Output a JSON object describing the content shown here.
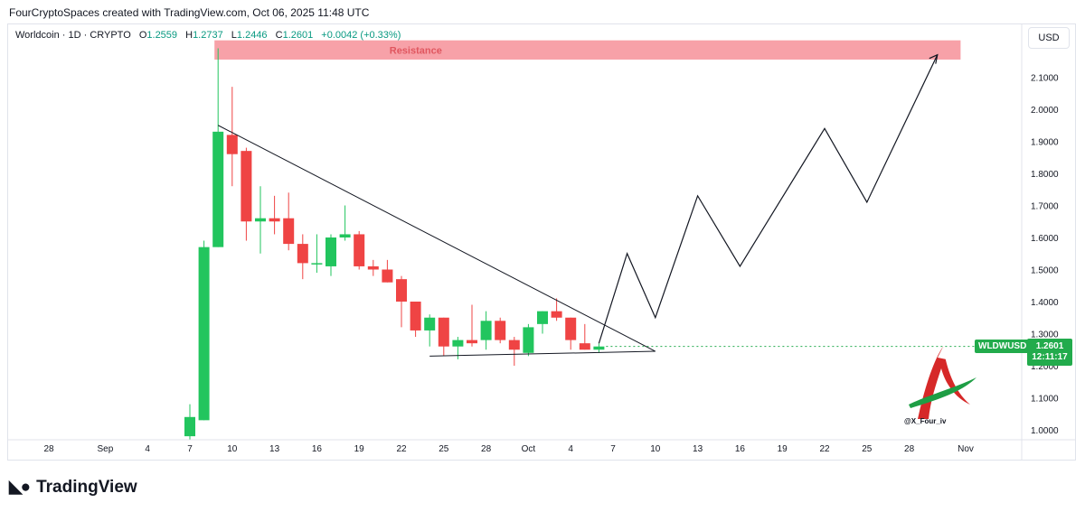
{
  "header": {
    "attribution": "FourCryptoSpaces created with TradingView.com, Oct 06, 2025 11:48 UTC"
  },
  "legend": {
    "symbol": "Worldcoin · 1D · CRYPTO",
    "open_label": "O",
    "open": "1.2559",
    "high_label": "H",
    "high": "1.2737",
    "low_label": "L",
    "low": "1.2446",
    "close_label": "C",
    "close": "1.2601",
    "change": "+0.0042 (+0.33%)"
  },
  "currency_button": "USD",
  "price_tag": {
    "symbol": "WLDWUSD",
    "price": "1.2601",
    "countdown": "12:11:17"
  },
  "watermark_handle": "@X_Four_iv",
  "footer": {
    "brand": "TradingView"
  },
  "colors": {
    "up": "#22c55e",
    "down": "#ef4444",
    "resistance": "#f7a1a8",
    "resistance_text": "#e0565f",
    "tag": "#22ab4c"
  },
  "chart_data": {
    "type": "candlestick",
    "title": "",
    "xlabel": "",
    "ylabel": "",
    "ylim": [
      0.95,
      2.2
    ],
    "y_ticks": [
      "2.1000",
      "2.0000",
      "1.9000",
      "1.8000",
      "1.7000",
      "1.6000",
      "1.5000",
      "1.4000",
      "1.3000",
      "1.2000",
      "1.1000",
      "1.0000"
    ],
    "y_tick_values": [
      2.1,
      2.0,
      1.9,
      1.8,
      1.7,
      1.6,
      1.5,
      1.4,
      1.3,
      1.2,
      1.1,
      1.0
    ],
    "x_ticks": [
      {
        "label": "28",
        "day": 0
      },
      {
        "label": "Sep",
        "day": 4
      },
      {
        "label": "4",
        "day": 7
      },
      {
        "label": "7",
        "day": 10
      },
      {
        "label": "10",
        "day": 13
      },
      {
        "label": "13",
        "day": 16
      },
      {
        "label": "16",
        "day": 19
      },
      {
        "label": "19",
        "day": 22
      },
      {
        "label": "22",
        "day": 25
      },
      {
        "label": "25",
        "day": 28
      },
      {
        "label": "28",
        "day": 31
      },
      {
        "label": "Oct",
        "day": 34
      },
      {
        "label": "4",
        "day": 37
      },
      {
        "label": "7",
        "day": 40
      },
      {
        "label": "10",
        "day": 43
      },
      {
        "label": "13",
        "day": 46
      },
      {
        "label": "16",
        "day": 49
      },
      {
        "label": "19",
        "day": 52
      },
      {
        "label": "22",
        "day": 55
      },
      {
        "label": "25",
        "day": 58
      },
      {
        "label": "28",
        "day": 61
      },
      {
        "label": "Nov",
        "day": 65
      }
    ],
    "candles": [
      {
        "day": 10,
        "o": 0.98,
        "h": 1.08,
        "l": 0.97,
        "c": 1.04
      },
      {
        "day": 11,
        "o": 1.03,
        "h": 1.59,
        "l": 1.03,
        "c": 1.57
      },
      {
        "day": 12,
        "o": 1.57,
        "h": 2.19,
        "l": 1.57,
        "c": 1.93
      },
      {
        "day": 13,
        "o": 1.92,
        "h": 2.07,
        "l": 1.76,
        "c": 1.86
      },
      {
        "day": 14,
        "o": 1.87,
        "h": 1.88,
        "l": 1.59,
        "c": 1.65
      },
      {
        "day": 15,
        "o": 1.65,
        "h": 1.76,
        "l": 1.55,
        "c": 1.66
      },
      {
        "day": 16,
        "o": 1.66,
        "h": 1.73,
        "l": 1.61,
        "c": 1.65
      },
      {
        "day": 17,
        "o": 1.66,
        "h": 1.74,
        "l": 1.56,
        "c": 1.58
      },
      {
        "day": 18,
        "o": 1.58,
        "h": 1.61,
        "l": 1.47,
        "c": 1.52
      },
      {
        "day": 19,
        "o": 1.52,
        "h": 1.61,
        "l": 1.49,
        "c": 1.52
      },
      {
        "day": 20,
        "o": 1.51,
        "h": 1.61,
        "l": 1.48,
        "c": 1.6
      },
      {
        "day": 21,
        "o": 1.6,
        "h": 1.7,
        "l": 1.59,
        "c": 1.61
      },
      {
        "day": 22,
        "o": 1.61,
        "h": 1.62,
        "l": 1.5,
        "c": 1.51
      },
      {
        "day": 23,
        "o": 1.51,
        "h": 1.53,
        "l": 1.48,
        "c": 1.5
      },
      {
        "day": 24,
        "o": 1.5,
        "h": 1.53,
        "l": 1.46,
        "c": 1.46
      },
      {
        "day": 25,
        "o": 1.47,
        "h": 1.48,
        "l": 1.32,
        "c": 1.4
      },
      {
        "day": 26,
        "o": 1.4,
        "h": 1.4,
        "l": 1.29,
        "c": 1.31
      },
      {
        "day": 27,
        "o": 1.31,
        "h": 1.36,
        "l": 1.26,
        "c": 1.35
      },
      {
        "day": 28,
        "o": 1.35,
        "h": 1.35,
        "l": 1.23,
        "c": 1.26
      },
      {
        "day": 29,
        "o": 1.26,
        "h": 1.29,
        "l": 1.22,
        "c": 1.28
      },
      {
        "day": 30,
        "o": 1.28,
        "h": 1.39,
        "l": 1.26,
        "c": 1.27
      },
      {
        "day": 31,
        "o": 1.28,
        "h": 1.37,
        "l": 1.25,
        "c": 1.34
      },
      {
        "day": 32,
        "o": 1.34,
        "h": 1.35,
        "l": 1.27,
        "c": 1.28
      },
      {
        "day": 33,
        "o": 1.28,
        "h": 1.29,
        "l": 1.2,
        "c": 1.25
      },
      {
        "day": 34,
        "o": 1.24,
        "h": 1.33,
        "l": 1.23,
        "c": 1.32
      },
      {
        "day": 35,
        "o": 1.33,
        "h": 1.37,
        "l": 1.3,
        "c": 1.37
      },
      {
        "day": 36,
        "o": 1.37,
        "h": 1.41,
        "l": 1.34,
        "c": 1.35
      },
      {
        "day": 37,
        "o": 1.35,
        "h": 1.35,
        "l": 1.25,
        "c": 1.28
      },
      {
        "day": 38,
        "o": 1.27,
        "h": 1.33,
        "l": 1.25,
        "c": 1.25
      },
      {
        "day": 39,
        "o": 1.25,
        "h": 1.27,
        "l": 1.24,
        "c": 1.26
      }
    ],
    "resistance_zone": {
      "label": "Resistance",
      "from_day": 12,
      "to_day": 64,
      "y_low": 2.155,
      "y_high": 2.215
    },
    "descending_trendline": [
      {
        "day": 12,
        "y": 1.95
      },
      {
        "day": 43,
        "y": 1.245
      }
    ],
    "support_line": [
      {
        "day": 27,
        "y": 1.23
      },
      {
        "day": 43,
        "y": 1.245
      }
    ],
    "projection_path": [
      {
        "day": 39,
        "y": 1.27
      },
      {
        "day": 41,
        "y": 1.55
      },
      {
        "day": 43,
        "y": 1.35
      },
      {
        "day": 46,
        "y": 1.73
      },
      {
        "day": 49,
        "y": 1.51
      },
      {
        "day": 55,
        "y": 1.94
      },
      {
        "day": 58,
        "y": 1.71
      },
      {
        "day": 63,
        "y": 2.17
      }
    ]
  }
}
